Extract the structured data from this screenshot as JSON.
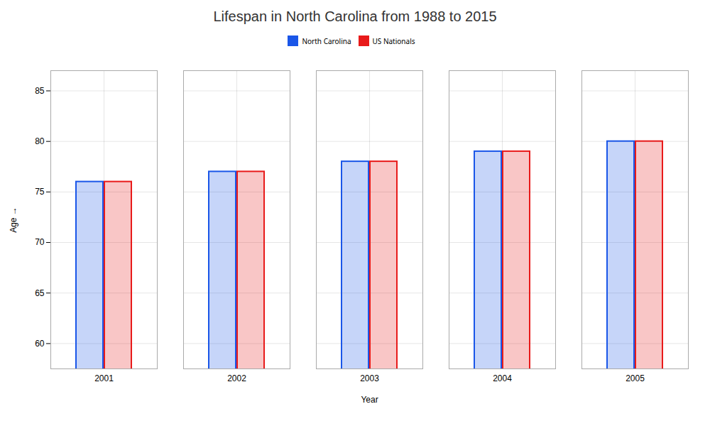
{
  "chart_data": {
    "type": "bar",
    "title": "Lifespan in North Carolina from 1988 to 2015",
    "xlabel": "Year",
    "ylabel": "Age",
    "categories": [
      "2001",
      "2002",
      "2003",
      "2004",
      "2005"
    ],
    "series": [
      {
        "name": "North Carolina",
        "color": "#1a56e8",
        "values": [
          76,
          77,
          78,
          79,
          80
        ]
      },
      {
        "name": "US Nationals",
        "color": "#e81a1a",
        "values": [
          76,
          77,
          78,
          79,
          80
        ]
      }
    ],
    "ylim": [
      57.5,
      87
    ],
    "yticks": [
      60,
      65,
      70,
      75,
      80,
      85
    ],
    "grid": true,
    "legend": "top"
  }
}
